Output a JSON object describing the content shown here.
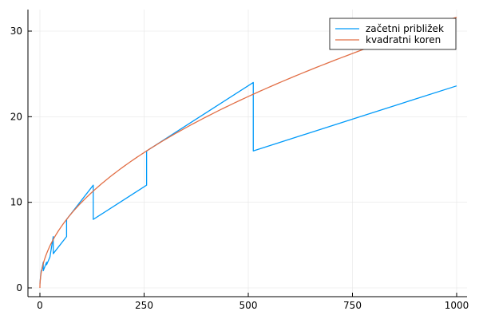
{
  "chart_data": {
    "type": "line",
    "title": "",
    "xlabel": "",
    "ylabel": "",
    "xlim": [
      0,
      1000
    ],
    "ylim": [
      0,
      32
    ],
    "x_ticks": [
      0,
      250,
      500,
      750,
      1000
    ],
    "x_tick_labels": [
      "0",
      "250",
      "500",
      "750",
      "1000"
    ],
    "y_ticks": [
      0,
      10,
      20,
      30
    ],
    "y_tick_labels": [
      "0",
      "10",
      "20",
      "30"
    ],
    "grid": true,
    "legend_position": "top-right",
    "series": [
      {
        "name": "začetni približek",
        "color": "#009af9",
        "points": [
          [
            0,
            0.5
          ],
          [
            1,
            1
          ],
          [
            2,
            1.5
          ],
          [
            3,
            2
          ],
          [
            4,
            2
          ],
          [
            6,
            2.5
          ],
          [
            8,
            3
          ],
          [
            8,
            2
          ],
          [
            12,
            2.5
          ],
          [
            16,
            3
          ],
          [
            16,
            2.7
          ],
          [
            24,
            3.6
          ],
          [
            32,
            6
          ],
          [
            32,
            4
          ],
          [
            48,
            5
          ],
          [
            64,
            6
          ],
          [
            64,
            8
          ],
          [
            96,
            10
          ],
          [
            128,
            12
          ],
          [
            128,
            8
          ],
          [
            192,
            10
          ],
          [
            256,
            12
          ],
          [
            256,
            16
          ],
          [
            384,
            20
          ],
          [
            512,
            24
          ],
          [
            512,
            16
          ],
          [
            768,
            20
          ],
          [
            1000,
            23.6
          ]
        ]
      },
      {
        "name": "kvadratni koren",
        "color": "#e26f46",
        "function": "sqrt",
        "samples": 250
      }
    ]
  }
}
